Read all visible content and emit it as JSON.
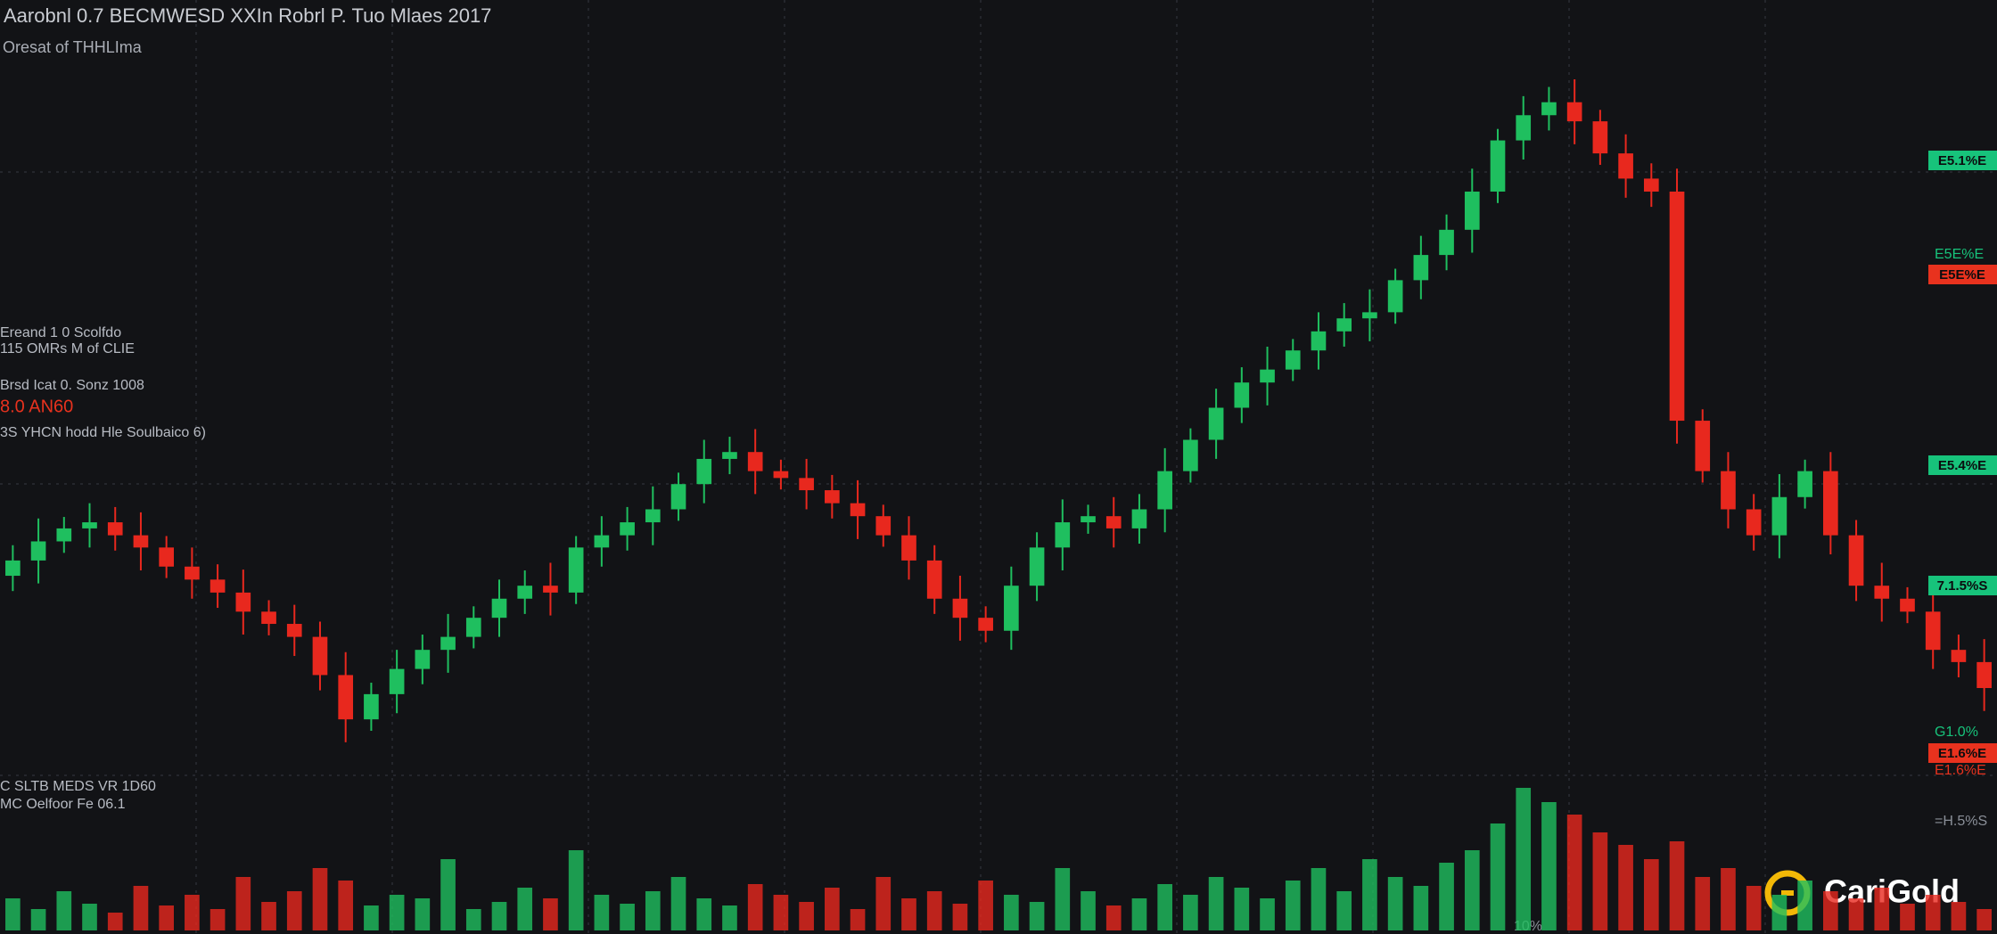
{
  "chart_data": {
    "type": "candlestick",
    "title": "Aarobnl 0.7 BECMWESD XXIn Robrl P. Tuo Mlaes 2017",
    "subtitle": "Oresat of THHLIma",
    "annotations": [
      {
        "text": "Ereand 1 0 Scolfdo",
        "color": "#b8bcc4"
      },
      {
        "text": "115 OMRs M of CLIE",
        "color": "#b8bcc4"
      },
      {
        "text": "Brsd Icat 0. Sonz 1008",
        "color": "#b8bcc4"
      },
      {
        "text": "8.0 AN60",
        "color": "#e8321e"
      },
      {
        "text": "3S YHCN hodd Hle Soulbaico 6)",
        "color": "#b8bcc4"
      },
      {
        "text": "C SLTB MEDS VR 1D60",
        "color": "#b8bcc4"
      },
      {
        "text": "MC Oelfoor Fe 06.1",
        "color": "#b8bcc4"
      }
    ],
    "price_tags": [
      {
        "label": "E5.1%E",
        "color": "#17c37b"
      },
      {
        "label": "E5E%E",
        "color": "#17c37b"
      },
      {
        "label": "E5E%E",
        "color": "#e8321e"
      },
      {
        "label": "E5.4%E",
        "color": "#17c37b"
      },
      {
        "label": "7.1.5%S",
        "color": "#17c37b"
      },
      {
        "label": "G1.0%",
        "color": "#17c37b"
      },
      {
        "label": "E1.6%E",
        "color": "#e8321e"
      },
      {
        "label": "E1.6%E",
        "color": "#e8321e"
      },
      {
        "label": "=H.5%S",
        "color": "#8a8f98"
      }
    ],
    "footer_label": "10%",
    "logo": "CariGold",
    "up_color": "#1fbf5f",
    "down_color": "#e8281e",
    "ylim": [
      0,
      100
    ],
    "volume_ylim": [
      0,
      100
    ],
    "open": [
      28,
      30,
      32.5,
      34.2,
      35,
      33.3,
      31.7,
      29.2,
      27.5,
      25.8,
      23.3,
      21.7,
      20,
      15,
      9.2,
      12.5,
      15.8,
      18.3,
      20,
      22.5,
      25,
      26.7,
      25.8,
      31.7,
      33.3,
      35,
      36.7,
      40,
      43.3,
      44.2,
      41.7,
      40.8,
      39.2,
      37.5,
      35.8,
      33.3,
      30,
      25,
      22.5,
      20.8,
      26.7,
      31.7,
      35,
      35.8,
      34.2,
      36.7,
      41.7,
      45.8,
      50,
      53.3,
      55,
      57.5,
      60,
      61.7,
      62.5,
      66.7,
      70,
      73.3,
      78.3,
      85,
      88.3,
      90,
      87.5,
      83.3,
      80,
      78.3,
      48.3,
      41.7,
      36.7,
      33.3,
      38.3,
      41.7,
      33.3,
      26.7,
      25,
      23.3,
      18.3,
      16.7
    ],
    "high": [
      32,
      35.5,
      35.7,
      37.5,
      37,
      36.3,
      33.2,
      31.7,
      29.5,
      28.8,
      24.8,
      24.2,
      22,
      18,
      14,
      18.3,
      20.3,
      23,
      24,
      27.5,
      28.7,
      29.7,
      33.2,
      35.8,
      37,
      39.7,
      41.5,
      45.8,
      46.2,
      47.2,
      43.2,
      43.3,
      41.2,
      40.5,
      37.3,
      35.8,
      32,
      28,
      24,
      29.2,
      33.7,
      38,
      37.3,
      38.3,
      38.7,
      44.7,
      47.3,
      52.5,
      55.3,
      58,
      59,
      62.5,
      63.7,
      65.5,
      68.2,
      72.5,
      75.3,
      81.3,
      86.5,
      90.8,
      92,
      93,
      89,
      85.8,
      82,
      81.3,
      49.8,
      44.2,
      38.7,
      41.3,
      43.2,
      44.2,
      35.3,
      29.7,
      26.5,
      25.8,
      20.3,
      19.7
    ],
    "low": [
      26,
      27,
      31,
      31.7,
      31.3,
      28.7,
      27.7,
      25,
      23.8,
      20.3,
      20.2,
      17.5,
      13,
      6.2,
      7.7,
      10,
      13.8,
      15.3,
      18.5,
      20,
      23,
      22.8,
      24.3,
      29.2,
      31.3,
      32,
      35.2,
      37.5,
      41.3,
      38.7,
      39.3,
      36.7,
      35.5,
      32.8,
      31.8,
      27.5,
      23,
      19.5,
      19.3,
      18.3,
      24.7,
      28.7,
      33.5,
      31.7,
      32.2,
      33.7,
      40.2,
      43.3,
      48,
      50.3,
      53.5,
      55,
      58,
      58.7,
      61,
      64.2,
      68,
      70.3,
      76.8,
      82.5,
      86.3,
      84.5,
      81.8,
      77.5,
      76.3,
      45.3,
      40.2,
      34.2,
      31.3,
      30.3,
      36.8,
      30.8,
      24.7,
      22,
      21.8,
      15.8,
      14.7,
      10.3
    ],
    "close": [
      30,
      32.5,
      34.2,
      35,
      33.3,
      31.7,
      29.2,
      27.5,
      25.8,
      23.3,
      21.7,
      20,
      15,
      9.2,
      12.5,
      15.8,
      18.3,
      20,
      22.5,
      25,
      26.7,
      25.8,
      31.7,
      33.3,
      35,
      36.7,
      40,
      43.3,
      44.2,
      41.7,
      40.8,
      39.2,
      37.5,
      35.8,
      33.3,
      30,
      25,
      22.5,
      20.8,
      26.7,
      31.7,
      35,
      35.8,
      34.2,
      36.7,
      41.7,
      45.8,
      50,
      53.3,
      55,
      57.5,
      60,
      61.7,
      62.5,
      66.7,
      70,
      73.3,
      78.3,
      85,
      88.3,
      90,
      87.5,
      83.3,
      80,
      78.3,
      48.3,
      41.7,
      36.7,
      33.3,
      38.3,
      41.7,
      33.3,
      26.7,
      25,
      23.3,
      18.3,
      16.7,
      13.3
    ],
    "volume": [
      18,
      12,
      22,
      15,
      10,
      25,
      14,
      20,
      12,
      30,
      16,
      22,
      35,
      28,
      14,
      20,
      18,
      40,
      12,
      16,
      24,
      18,
      45,
      20,
      15,
      22,
      30,
      18,
      14,
      26,
      20,
      16,
      24,
      12,
      30,
      18,
      22,
      15,
      28,
      20,
      16,
      35,
      22,
      14,
      18,
      26,
      20,
      30,
      24,
      18,
      28,
      35,
      22,
      40,
      30,
      25,
      38,
      45,
      60,
      80,
      72,
      65,
      55,
      48,
      40,
      50,
      30,
      35,
      25,
      20,
      28,
      22,
      18,
      24,
      15,
      20,
      16,
      12
    ]
  }
}
